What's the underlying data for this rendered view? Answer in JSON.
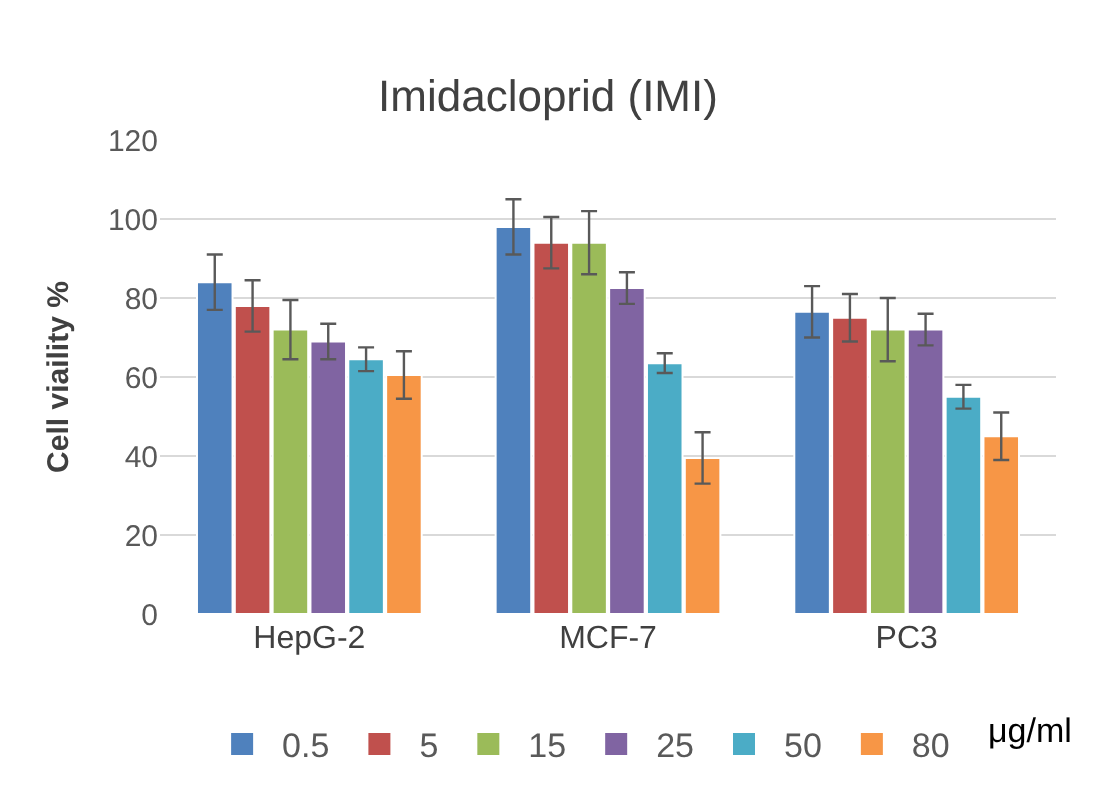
{
  "chart_data": {
    "type": "bar",
    "title": "Imidacloprid (IMI)",
    "ylabel": "Cell viaility %",
    "legend_title": "μg/ml",
    "categories": [
      "HepG-2",
      "MCF-7",
      "PC3"
    ],
    "series": [
      {
        "name": "0.5",
        "color": "#4f81bd",
        "values": [
          84,
          98,
          76.5
        ],
        "errors": [
          7,
          7,
          6.5
        ]
      },
      {
        "name": "5",
        "color": "#c0504d",
        "values": [
          78,
          94,
          75
        ],
        "errors": [
          6.5,
          6.5,
          6
        ]
      },
      {
        "name": "15",
        "color": "#9bbb59",
        "values": [
          72,
          94,
          72
        ],
        "errors": [
          7.5,
          8,
          8
        ]
      },
      {
        "name": "25",
        "color": "#8064a2",
        "values": [
          69,
          82.5,
          72
        ],
        "errors": [
          4.5,
          4,
          4
        ]
      },
      {
        "name": "50",
        "color": "#4bacc6",
        "values": [
          64.5,
          63.5,
          55
        ],
        "errors": [
          3,
          2.5,
          3
        ]
      },
      {
        "name": "80",
        "color": "#f79646",
        "values": [
          60.5,
          39.5,
          45
        ],
        "errors": [
          6,
          6.5,
          6
        ]
      }
    ],
    "ylim": [
      0,
      120
    ],
    "yticks": [
      0,
      20,
      40,
      60,
      80,
      100,
      120
    ],
    "grid": "y",
    "legend": "bottom"
  }
}
